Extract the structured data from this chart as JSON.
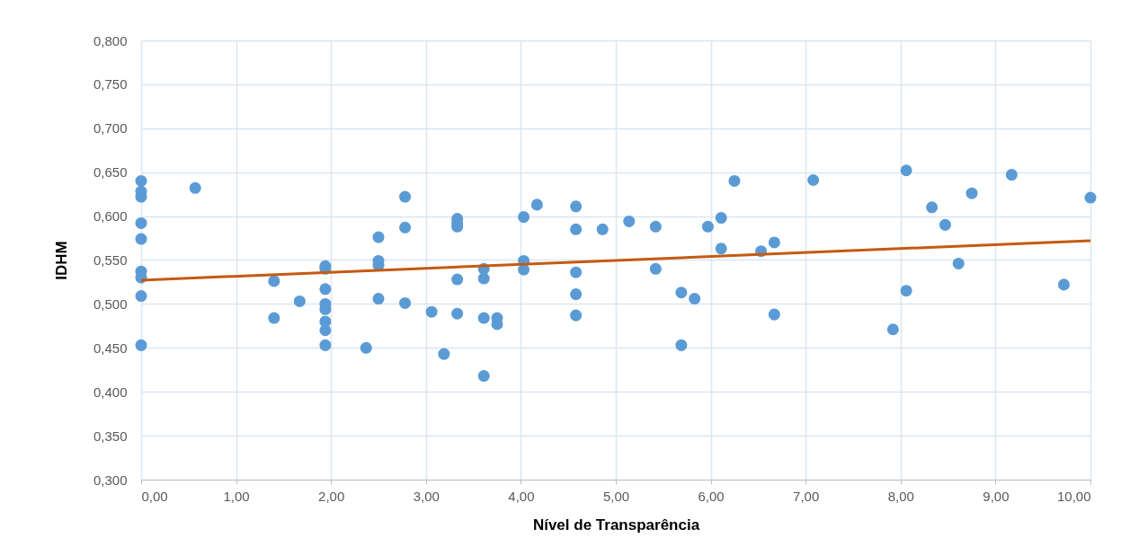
{
  "chart_data": {
    "type": "scatter",
    "xlabel": "Nível de Transparência",
    "ylabel": "IDHM",
    "xlim": [
      0,
      10
    ],
    "ylim": [
      0.3,
      0.8
    ],
    "xticks": [
      {
        "value": 0,
        "label": "0,00"
      },
      {
        "value": 1,
        "label": "1,00"
      },
      {
        "value": 2,
        "label": "2,00"
      },
      {
        "value": 3,
        "label": "3,00"
      },
      {
        "value": 4,
        "label": "4,00"
      },
      {
        "value": 5,
        "label": "5,00"
      },
      {
        "value": 6,
        "label": "6,00"
      },
      {
        "value": 7,
        "label": "7,00"
      },
      {
        "value": 8,
        "label": "8,00"
      },
      {
        "value": 9,
        "label": "9,00"
      },
      {
        "value": 10,
        "label": "10,00"
      }
    ],
    "yticks": [
      {
        "value": 0.3,
        "label": "0,300"
      },
      {
        "value": 0.35,
        "label": "0,350"
      },
      {
        "value": 0.4,
        "label": "0,400"
      },
      {
        "value": 0.45,
        "label": "0,450"
      },
      {
        "value": 0.5,
        "label": "0,500"
      },
      {
        "value": 0.55,
        "label": "0,550"
      },
      {
        "value": 0.6,
        "label": "0,600"
      },
      {
        "value": 0.65,
        "label": "0,650"
      },
      {
        "value": 0.7,
        "label": "0,700"
      },
      {
        "value": 0.75,
        "label": "0,750"
      },
      {
        "value": 0.8,
        "label": "0,800"
      }
    ],
    "grid": true,
    "series": [
      {
        "marker": "circle",
        "color": "#5b9bd5",
        "x": [
          0,
          0,
          0,
          0,
          0,
          0,
          0,
          0,
          0,
          0.57,
          1.4,
          1.4,
          1.67,
          1.94,
          1.94,
          1.94,
          1.94,
          1.94,
          1.94,
          1.94,
          1.94,
          2.37,
          2.5,
          2.5,
          2.5,
          2.5,
          2.78,
          2.78,
          2.78,
          3.06,
          3.19,
          3.33,
          3.33,
          3.33,
          3.33,
          3.33,
          3.61,
          3.61,
          3.61,
          3.61,
          3.75,
          3.75,
          4.03,
          4.03,
          4.03,
          4.17,
          4.58,
          4.58,
          4.58,
          4.58,
          4.58,
          4.86,
          5.14,
          5.42,
          5.42,
          5.69,
          5.69,
          5.83,
          5.97,
          6.11,
          6.11,
          6.25,
          6.53,
          6.67,
          6.67,
          7.08,
          7.92,
          8.06,
          8.06,
          8.33,
          8.47,
          8.61,
          8.75,
          9.17,
          9.72,
          10.0
        ],
        "values": [
          0.64,
          0.628,
          0.622,
          0.592,
          0.574,
          0.537,
          0.53,
          0.509,
          0.453,
          0.632,
          0.526,
          0.484,
          0.503,
          0.543,
          0.54,
          0.517,
          0.5,
          0.494,
          0.48,
          0.47,
          0.453,
          0.45,
          0.576,
          0.549,
          0.544,
          0.506,
          0.622,
          0.587,
          0.501,
          0.491,
          0.443,
          0.597,
          0.592,
          0.588,
          0.528,
          0.489,
          0.54,
          0.529,
          0.484,
          0.418,
          0.484,
          0.477,
          0.599,
          0.549,
          0.539,
          0.613,
          0.611,
          0.585,
          0.536,
          0.511,
          0.487,
          0.585,
          0.594,
          0.588,
          0.54,
          0.513,
          0.453,
          0.506,
          0.588,
          0.598,
          0.563,
          0.64,
          0.56,
          0.57,
          0.488,
          0.641,
          0.471,
          0.652,
          0.515,
          0.61,
          0.59,
          0.546,
          0.626,
          0.647,
          0.522,
          0.621
        ]
      },
      {
        "type": "line",
        "color": "#c55a11",
        "x": [
          0,
          10
        ],
        "values": [
          0.527,
          0.572
        ]
      }
    ]
  }
}
